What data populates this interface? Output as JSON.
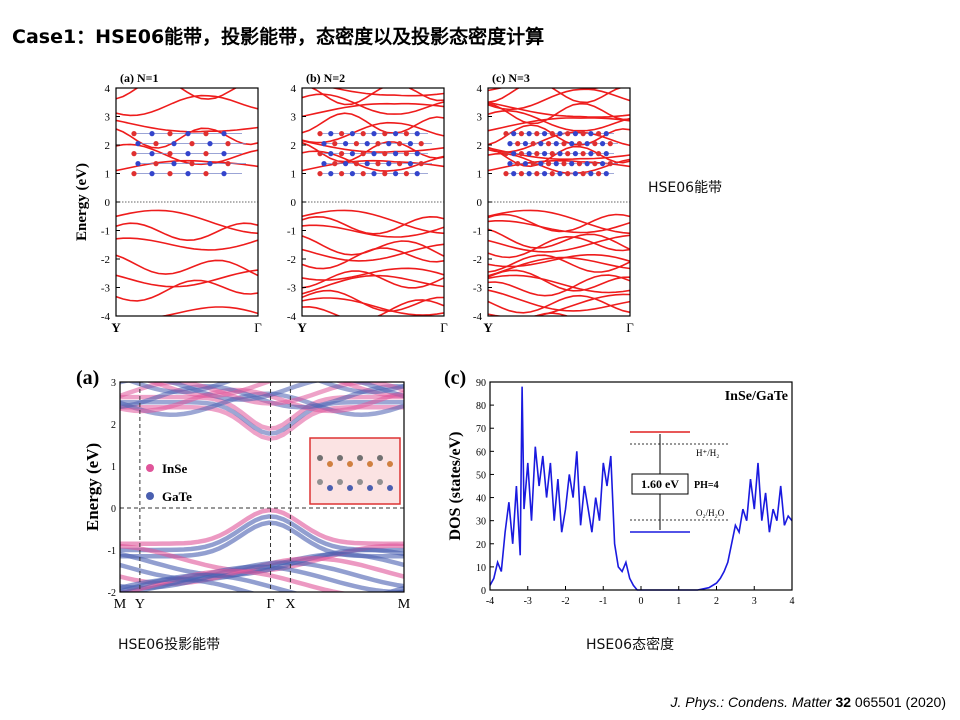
{
  "title": "Case1：HSE06能带，投影能带，态密度以及投影态密度计算",
  "captions": {
    "bands": "HSE06能带",
    "projected": "HSE06投影能带",
    "dos": "HSE06态密度"
  },
  "reference": {
    "journal": "J. Phys.: Condens. Matter",
    "volume": "32",
    "rest": " 065501 (2020)"
  },
  "chart_data": [
    {
      "type": "line",
      "panel": "(a) N=1",
      "ylabel": "Energy (eV)",
      "ylim": [
        -4,
        4
      ],
      "yticks": [
        "-4",
        "-3",
        "-2",
        "-1",
        "0",
        "1",
        "2",
        "3",
        "4"
      ],
      "xticks": [
        "Y",
        "Γ"
      ],
      "fermi_level": 0
    },
    {
      "type": "line",
      "panel": "(b) N=2",
      "ylim": [
        -4,
        4
      ],
      "yticks": [
        "-4",
        "-3",
        "-2",
        "-1",
        "0",
        "1",
        "2",
        "3",
        "4"
      ],
      "xticks": [
        "Y",
        "Γ"
      ],
      "fermi_level": 0
    },
    {
      "type": "line",
      "panel": "(c) N=3",
      "ylim": [
        -4,
        4
      ],
      "yticks": [
        "-4",
        "-3",
        "-2",
        "-1",
        "0",
        "1",
        "2",
        "3",
        "4"
      ],
      "xticks": [
        "Y",
        "Γ"
      ],
      "fermi_level": 0
    },
    {
      "type": "scatter",
      "panel": "(a)",
      "ylabel": "Energy (eV)",
      "ylim": [
        -2,
        3
      ],
      "yticks": [
        "-2",
        "-1",
        "0",
        "1",
        "2",
        "3"
      ],
      "xticks": [
        "M",
        "Y",
        "Γ",
        "X",
        "M"
      ],
      "series": [
        {
          "name": "InSe",
          "color": "#e0559a"
        },
        {
          "name": "GaTe",
          "color": "#4a5fb0"
        }
      ]
    },
    {
      "type": "line",
      "panel": "(c)",
      "ylabel": "DOS (states/eV)",
      "label": "InSe/GaTe",
      "xlim": [
        -4,
        4
      ],
      "ylim": [
        0,
        90
      ],
      "xticks": [
        "-4",
        "-3",
        "-2",
        "-1",
        "0",
        "1",
        "2",
        "3",
        "4"
      ],
      "yticks": [
        "0",
        "10",
        "20",
        "30",
        "40",
        "50",
        "60",
        "70",
        "80",
        "90"
      ],
      "gap_label": "1.60 eV",
      "annotations": [
        "H⁺/H₂",
        "PH=4",
        "O₂/H₂O"
      ],
      "x": [
        -4.0,
        -3.9,
        -3.8,
        -3.7,
        -3.6,
        -3.5,
        -3.4,
        -3.3,
        -3.2,
        -3.15,
        -3.1,
        -3.0,
        -2.9,
        -2.8,
        -2.7,
        -2.6,
        -2.5,
        -2.4,
        -2.3,
        -2.2,
        -2.1,
        -2.0,
        -1.9,
        -1.8,
        -1.7,
        -1.6,
        -1.5,
        -1.4,
        -1.3,
        -1.2,
        -1.1,
        -1.0,
        -0.9,
        -0.8,
        -0.7,
        -0.6,
        -0.5,
        -0.4,
        -0.3,
        -0.2,
        -0.1,
        0.0,
        0.5,
        1.0,
        1.5,
        1.8,
        2.0,
        2.1,
        2.2,
        2.3,
        2.4,
        2.5,
        2.6,
        2.7,
        2.8,
        2.9,
        3.0,
        3.1,
        3.2,
        3.3,
        3.4,
        3.5,
        3.6,
        3.7,
        3.8,
        3.9,
        4.0
      ],
      "y": [
        2,
        5,
        12,
        8,
        25,
        38,
        20,
        45,
        15,
        88,
        35,
        55,
        30,
        62,
        45,
        58,
        40,
        55,
        30,
        48,
        25,
        35,
        50,
        40,
        60,
        28,
        45,
        35,
        25,
        40,
        30,
        55,
        45,
        58,
        20,
        10,
        8,
        12,
        5,
        2,
        0,
        0,
        0,
        0,
        0,
        1,
        3,
        5,
        8,
        12,
        20,
        28,
        25,
        35,
        30,
        48,
        35,
        55,
        30,
        42,
        25,
        35,
        30,
        45,
        28,
        32,
        30
      ]
    }
  ]
}
